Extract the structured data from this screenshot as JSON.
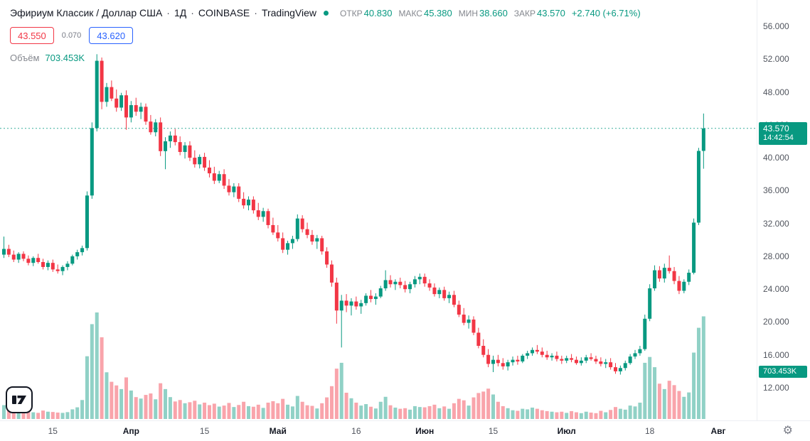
{
  "header": {
    "symbol": "Эфириум Классик / Доллар США",
    "sep": "·",
    "interval": "1Д",
    "exchange": "COINBASE",
    "brand": "TradingView",
    "ohlc": {
      "open_label": "ОТКР",
      "open": "40.830",
      "high_label": "МАКС",
      "high": "45.380",
      "low_label": "МИН",
      "low": "38.660",
      "close_label": "ЗАКР",
      "close": "43.570",
      "change": "+2.740 (+6.71%)"
    },
    "sell_price": "43.550",
    "spread": "0.070",
    "buy_price": "43.620",
    "volume_label": "Объём",
    "volume_value": "703.453K"
  },
  "price_scale": {
    "price_tag": {
      "price": "43.570",
      "countdown": "14:42:54"
    },
    "volume_tag": "703.453K"
  },
  "colors": {
    "up": "#089981",
    "down": "#f23645",
    "vol_up": "rgba(8,153,129,0.45)",
    "vol_down": "rgba(242,54,69,0.45)",
    "accent_blue": "#2962ff",
    "tag_bg": "#089981"
  },
  "chart_data": {
    "type": "candlestick",
    "title": "Эфириум Классик / Доллар США",
    "interval": "1Д",
    "exchange": "COINBASE",
    "ylim": [
      12,
      56
    ],
    "volume_unit": "K",
    "current_price": 43.57,
    "current_volume": 703.453,
    "today_ohlc": {
      "open": 40.83,
      "high": 45.38,
      "low": 38.66,
      "close": 43.57
    },
    "price_ticks": [
      "56.000",
      "52.000",
      "48.000",
      "44.000",
      "40.000",
      "36.000",
      "32.000",
      "28.000",
      "24.000",
      "20.000",
      "16.000",
      "12.000"
    ],
    "time_ticks": [
      {
        "label": "15",
        "i": 10,
        "major": false
      },
      {
        "label": "Апр",
        "i": 26,
        "major": true
      },
      {
        "label": "15",
        "i": 41,
        "major": false
      },
      {
        "label": "Май",
        "i": 56,
        "major": true
      },
      {
        "label": "16",
        "i": 72,
        "major": false
      },
      {
        "label": "Июн",
        "i": 86,
        "major": true
      },
      {
        "label": "15",
        "i": 100,
        "major": false
      },
      {
        "label": "Июл",
        "i": 115,
        "major": true
      },
      {
        "label": "18",
        "i": 132,
        "major": false
      },
      {
        "label": "Авг",
        "i": 146,
        "major": true
      }
    ],
    "candles": [
      [
        28.2,
        30.4,
        27.8,
        28.9,
        95
      ],
      [
        28.9,
        29.4,
        27.9,
        28.2,
        72
      ],
      [
        28.2,
        28.7,
        27.3,
        27.6,
        60
      ],
      [
        27.6,
        28.5,
        27.2,
        28.3,
        55
      ],
      [
        28.3,
        28.6,
        27.4,
        27.7,
        50
      ],
      [
        27.7,
        28.1,
        26.9,
        27.2,
        55
      ],
      [
        27.2,
        28.0,
        26.8,
        27.8,
        46
      ],
      [
        27.8,
        28.3,
        27.1,
        27.3,
        42
      ],
      [
        27.3,
        27.7,
        26.4,
        26.7,
        58
      ],
      [
        26.7,
        27.5,
        26.3,
        27.2,
        50
      ],
      [
        27.2,
        27.6,
        26.1,
        26.4,
        48
      ],
      [
        26.4,
        27.0,
        25.9,
        26.2,
        44
      ],
      [
        26.2,
        26.9,
        25.7,
        26.7,
        42
      ],
      [
        26.7,
        27.4,
        26.3,
        27.1,
        47
      ],
      [
        27.1,
        28.2,
        26.9,
        28.0,
        66
      ],
      [
        28.0,
        28.8,
        27.6,
        28.5,
        80
      ],
      [
        28.5,
        29.3,
        28.1,
        29.0,
        130
      ],
      [
        29.0,
        35.9,
        28.7,
        35.4,
        430
      ],
      [
        35.4,
        44.3,
        35.0,
        43.6,
        650
      ],
      [
        43.6,
        52.6,
        43.2,
        51.8,
        730
      ],
      [
        51.8,
        52.2,
        45.9,
        46.8,
        560
      ],
      [
        46.8,
        49.1,
        46.2,
        48.6,
        320
      ],
      [
        48.6,
        49.4,
        46.9,
        47.2,
        255
      ],
      [
        47.2,
        48.3,
        45.6,
        46.1,
        230
      ],
      [
        46.1,
        47.9,
        45.7,
        47.6,
        205
      ],
      [
        47.6,
        48.2,
        43.4,
        44.9,
        285
      ],
      [
        44.9,
        46.9,
        44.3,
        46.4,
        195
      ],
      [
        46.4,
        47.3,
        45.1,
        45.6,
        150
      ],
      [
        45.6,
        46.7,
        44.7,
        46.2,
        140
      ],
      [
        46.2,
        46.6,
        44.0,
        44.4,
        165
      ],
      [
        44.4,
        45.2,
        42.8,
        43.1,
        175
      ],
      [
        43.1,
        44.7,
        42.6,
        44.3,
        135
      ],
      [
        44.3,
        44.9,
        40.2,
        40.8,
        245
      ],
      [
        40.8,
        42.5,
        38.6,
        42.0,
        205
      ],
      [
        42.0,
        43.2,
        41.2,
        42.7,
        150
      ],
      [
        42.7,
        43.5,
        41.5,
        41.9,
        120
      ],
      [
        41.9,
        42.6,
        40.3,
        40.7,
        130
      ],
      [
        40.7,
        41.9,
        39.9,
        41.5,
        108
      ],
      [
        41.5,
        42.0,
        39.6,
        40.0,
        115
      ],
      [
        40.0,
        40.9,
        38.8,
        39.2,
        125
      ],
      [
        39.2,
        40.4,
        38.7,
        40.1,
        100
      ],
      [
        40.1,
        40.6,
        38.4,
        38.8,
        112
      ],
      [
        38.8,
        39.7,
        37.6,
        38.1,
        95
      ],
      [
        38.1,
        38.9,
        36.8,
        37.2,
        105
      ],
      [
        37.2,
        38.4,
        36.9,
        38.0,
        85
      ],
      [
        38.0,
        38.6,
        36.2,
        36.6,
        92
      ],
      [
        36.6,
        37.4,
        35.4,
        35.8,
        110
      ],
      [
        35.8,
        36.9,
        35.2,
        36.5,
        82
      ],
      [
        36.5,
        36.9,
        34.6,
        35.0,
        96
      ],
      [
        35.0,
        35.8,
        33.8,
        34.2,
        118
      ],
      [
        34.2,
        35.3,
        33.6,
        34.9,
        88
      ],
      [
        34.9,
        35.3,
        33.2,
        33.6,
        84
      ],
      [
        33.6,
        34.5,
        32.4,
        32.8,
        98
      ],
      [
        32.8,
        33.9,
        32.2,
        33.5,
        76
      ],
      [
        33.5,
        33.8,
        31.4,
        31.8,
        112
      ],
      [
        31.8,
        32.7,
        30.6,
        30.9,
        122
      ],
      [
        30.9,
        31.8,
        29.8,
        30.2,
        108
      ],
      [
        30.2,
        30.9,
        28.4,
        28.8,
        138
      ],
      [
        28.8,
        29.9,
        28.2,
        29.6,
        98
      ],
      [
        29.6,
        30.5,
        28.9,
        30.1,
        86
      ],
      [
        30.1,
        33.1,
        29.8,
        32.6,
        158
      ],
      [
        32.6,
        33.0,
        30.9,
        31.3,
        118
      ],
      [
        31.3,
        32.1,
        30.2,
        30.6,
        94
      ],
      [
        30.6,
        31.2,
        29.4,
        29.8,
        90
      ],
      [
        29.8,
        30.6,
        28.9,
        30.2,
        72
      ],
      [
        30.2,
        30.5,
        28.2,
        28.6,
        108
      ],
      [
        28.6,
        29.1,
        26.6,
        27.0,
        148
      ],
      [
        27.0,
        27.5,
        24.3,
        24.8,
        225
      ],
      [
        24.8,
        25.4,
        19.8,
        21.4,
        345
      ],
      [
        21.4,
        23.3,
        16.9,
        22.6,
        385
      ],
      [
        22.6,
        23.4,
        21.2,
        22.0,
        180
      ],
      [
        22.0,
        22.9,
        20.8,
        22.5,
        142
      ],
      [
        22.5,
        23.1,
        21.5,
        21.9,
        112
      ],
      [
        21.9,
        22.7,
        21.0,
        22.3,
        92
      ],
      [
        22.3,
        23.5,
        22.0,
        23.2,
        102
      ],
      [
        23.2,
        23.9,
        22.4,
        22.8,
        84
      ],
      [
        22.8,
        23.5,
        22.1,
        23.1,
        72
      ],
      [
        23.1,
        24.4,
        22.9,
        24.1,
        118
      ],
      [
        24.1,
        26.3,
        23.8,
        25.1,
        152
      ],
      [
        25.1,
        25.7,
        24.2,
        24.6,
        94
      ],
      [
        24.6,
        25.2,
        23.9,
        24.9,
        78
      ],
      [
        24.9,
        25.4,
        24.1,
        24.5,
        70
      ],
      [
        24.5,
        25.0,
        23.6,
        24.0,
        74
      ],
      [
        24.0,
        24.9,
        23.5,
        24.6,
        64
      ],
      [
        24.6,
        25.6,
        24.2,
        25.2,
        88
      ],
      [
        25.2,
        25.9,
        24.6,
        25.5,
        82
      ],
      [
        25.5,
        25.9,
        24.3,
        24.7,
        80
      ],
      [
        24.7,
        25.2,
        23.8,
        24.2,
        88
      ],
      [
        24.2,
        24.7,
        23.1,
        23.4,
        98
      ],
      [
        23.4,
        24.2,
        22.9,
        23.9,
        74
      ],
      [
        23.9,
        24.3,
        22.6,
        22.9,
        86
      ],
      [
        22.9,
        23.7,
        22.3,
        23.3,
        70
      ],
      [
        23.3,
        23.8,
        21.8,
        22.1,
        108
      ],
      [
        22.1,
        22.6,
        20.6,
        20.9,
        138
      ],
      [
        20.9,
        21.7,
        19.6,
        19.9,
        128
      ],
      [
        19.9,
        20.8,
        19.2,
        20.3,
        92
      ],
      [
        20.3,
        20.7,
        18.4,
        18.7,
        148
      ],
      [
        18.7,
        19.3,
        16.8,
        17.1,
        178
      ],
      [
        17.1,
        17.9,
        15.7,
        16.0,
        188
      ],
      [
        16.0,
        16.7,
        14.5,
        14.9,
        208
      ],
      [
        14.9,
        15.9,
        13.9,
        15.4,
        168
      ],
      [
        15.4,
        16.0,
        14.6,
        15.0,
        118
      ],
      [
        15.0,
        15.6,
        14.2,
        14.6,
        88
      ],
      [
        14.6,
        15.4,
        14.1,
        15.1,
        74
      ],
      [
        15.1,
        15.8,
        14.7,
        15.4,
        60
      ],
      [
        15.4,
        15.9,
        14.8,
        15.2,
        56
      ],
      [
        15.2,
        16.1,
        15.0,
        15.9,
        70
      ],
      [
        15.9,
        16.5,
        15.5,
        16.2,
        66
      ],
      [
        16.2,
        16.9,
        15.9,
        16.6,
        78
      ],
      [
        16.6,
        17.2,
        16.1,
        16.4,
        70
      ],
      [
        16.4,
        16.9,
        15.7,
        16.0,
        60
      ],
      [
        16.0,
        16.5,
        15.4,
        15.7,
        54
      ],
      [
        15.7,
        16.2,
        15.3,
        15.9,
        50
      ],
      [
        15.9,
        16.4,
        15.2,
        15.5,
        46
      ],
      [
        15.5,
        15.9,
        14.9,
        15.3,
        50
      ],
      [
        15.3,
        15.9,
        15.0,
        15.6,
        42
      ],
      [
        15.6,
        16.1,
        15.1,
        15.4,
        54
      ],
      [
        15.4,
        15.8,
        14.8,
        15.0,
        46
      ],
      [
        15.0,
        15.7,
        14.7,
        15.3,
        40
      ],
      [
        15.3,
        16.0,
        15.0,
        15.7,
        50
      ],
      [
        15.7,
        16.2,
        15.3,
        15.5,
        44
      ],
      [
        15.5,
        15.9,
        14.9,
        15.2,
        40
      ],
      [
        15.2,
        15.7,
        14.6,
        14.9,
        56
      ],
      [
        14.9,
        15.5,
        14.4,
        15.1,
        46
      ],
      [
        15.1,
        15.6,
        14.2,
        14.5,
        62
      ],
      [
        14.5,
        15.0,
        13.7,
        14.0,
        82
      ],
      [
        14.0,
        14.7,
        13.6,
        14.4,
        70
      ],
      [
        14.4,
        15.3,
        14.1,
        15.0,
        64
      ],
      [
        15.0,
        16.1,
        14.8,
        15.8,
        92
      ],
      [
        15.8,
        16.6,
        15.5,
        16.2,
        86
      ],
      [
        16.2,
        17.1,
        15.9,
        16.7,
        112
      ],
      [
        16.7,
        20.9,
        16.5,
        20.4,
        385
      ],
      [
        20.4,
        24.6,
        20.1,
        24.1,
        425
      ],
      [
        24.1,
        26.9,
        23.8,
        26.3,
        355
      ],
      [
        26.3,
        26.8,
        24.9,
        25.3,
        242
      ],
      [
        25.3,
        27.1,
        24.8,
        26.6,
        205
      ],
      [
        26.6,
        28.1,
        25.9,
        26.2,
        262
      ],
      [
        26.2,
        26.7,
        24.6,
        25.0,
        232
      ],
      [
        25.0,
        25.6,
        23.4,
        23.8,
        192
      ],
      [
        23.8,
        25.2,
        23.5,
        24.9,
        152
      ],
      [
        24.9,
        26.4,
        24.5,
        26.0,
        182
      ],
      [
        26.0,
        32.6,
        25.8,
        32.1,
        455
      ],
      [
        32.1,
        41.2,
        31.8,
        40.83,
        625
      ],
      [
        40.83,
        45.38,
        38.66,
        43.57,
        703.453
      ]
    ]
  }
}
